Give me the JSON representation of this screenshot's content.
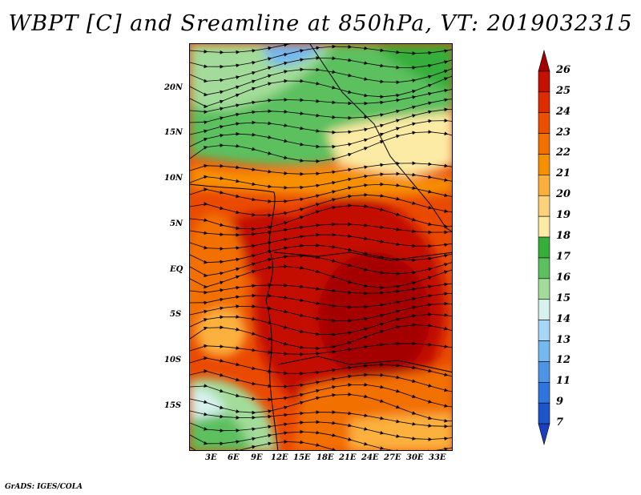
{
  "title": "WBPT [C] and Sreamline at 850hPa, VT: 2019032315",
  "credit": "GrADS: IGES/COLA",
  "map": {
    "y_labels": [
      "20N",
      "15N",
      "10N",
      "5N",
      "EQ",
      "5S",
      "10S",
      "15S"
    ],
    "x_labels": [
      "3E",
      "6E",
      "9E",
      "12E",
      "15E",
      "18E",
      "21E",
      "24E",
      "27E",
      "30E",
      "33E"
    ]
  },
  "colorbar": {
    "labels": [
      "26",
      "25",
      "24",
      "23",
      "22",
      "21",
      "20",
      "19",
      "18",
      "17",
      "16",
      "15",
      "14",
      "13",
      "12",
      "11",
      "9",
      "7"
    ],
    "colors": [
      "#a50000",
      "#c31000",
      "#dc2c00",
      "#eb5000",
      "#f27000",
      "#f79000",
      "#fcb03c",
      "#fdd27a",
      "#fbeba5",
      "#36ae3a",
      "#5cc05e",
      "#a3dc9a",
      "#d6f1ee",
      "#a8d6f7",
      "#74b8f0",
      "#4c95e6",
      "#2e76de",
      "#1e55c8",
      "#1a40c0"
    ]
  }
}
